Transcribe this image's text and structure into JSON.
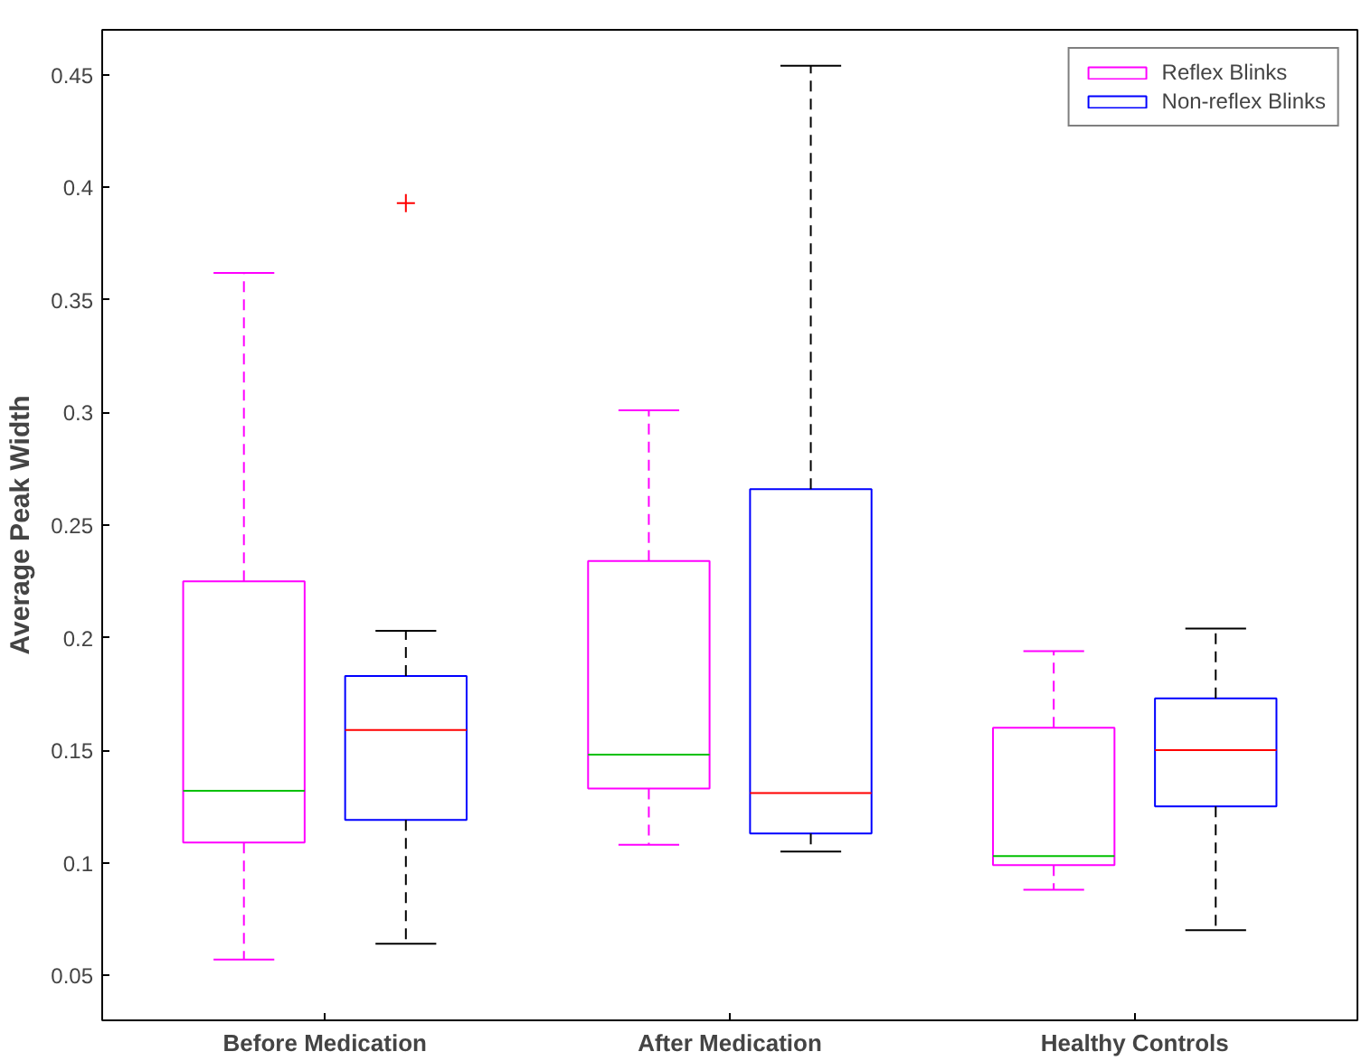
{
  "chart_data": {
    "type": "box",
    "ylabel": "Average Peak Width",
    "categories": [
      "Before Medication",
      "After Medication",
      "Healthy Controls"
    ],
    "series": [
      {
        "name": "Reflex Blinks",
        "color": "#ff00ff",
        "boxes": [
          {
            "low": 0.057,
            "q1": 0.109,
            "median": 0.132,
            "q3": 0.225,
            "high": 0.362
          },
          {
            "low": 0.108,
            "q1": 0.133,
            "median": 0.148,
            "q3": 0.234,
            "high": 0.301
          },
          {
            "low": 0.088,
            "q1": 0.099,
            "median": 0.103,
            "q3": 0.16,
            "high": 0.194
          }
        ]
      },
      {
        "name": "Non-reflex Blinks",
        "color": "#0000ff",
        "boxes": [
          {
            "low": 0.064,
            "q1": 0.119,
            "median": 0.159,
            "q3": 0.183,
            "high": 0.203,
            "outliers": [
              0.393
            ]
          },
          {
            "low": 0.105,
            "q1": 0.113,
            "median": 0.131,
            "q3": 0.266,
            "high": 0.454
          },
          {
            "low": 0.07,
            "q1": 0.125,
            "median": 0.15,
            "q3": 0.173,
            "high": 0.204
          }
        ]
      }
    ],
    "ylim": [
      0.03,
      0.47
    ],
    "yticks": [
      0.05,
      0.1,
      0.15,
      0.2,
      0.25,
      0.3,
      0.35,
      0.4,
      0.45
    ],
    "legend": "top right"
  }
}
